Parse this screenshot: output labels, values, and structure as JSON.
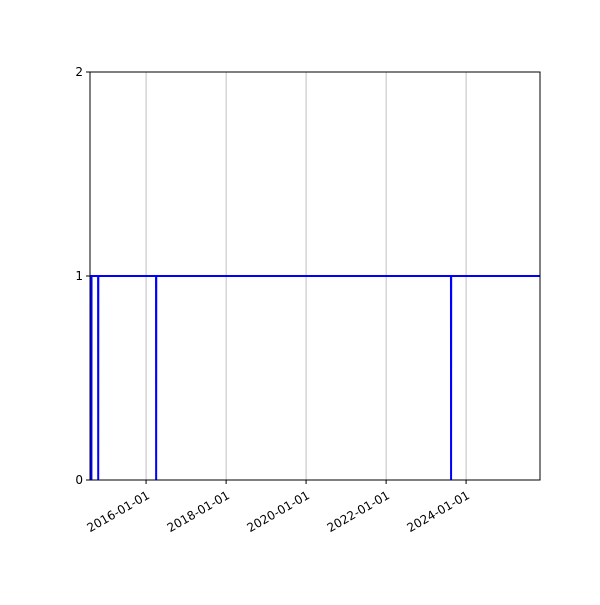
{
  "chart_data": {
    "type": "line",
    "title": "",
    "xlabel": "",
    "ylabel": "",
    "x_type": "date",
    "xlim": [
      "2014-08-07",
      "2025-11-06"
    ],
    "ylim": [
      0,
      2
    ],
    "grid": "vertical (x) only",
    "x_ticks": [
      "2016-01-01",
      "2018-01-01",
      "2020-01-01",
      "2022-01-01",
      "2024-01-01"
    ],
    "y_ticks": [
      "0",
      "1",
      "2"
    ],
    "series": [
      {
        "color": "#0000ff",
        "points": [
          [
            "2014-08-20",
            0
          ],
          [
            "2014-08-21",
            1
          ],
          [
            "2014-10-20",
            1
          ],
          [
            "2014-10-21",
            0
          ],
          [
            "2014-10-22",
            1
          ],
          [
            "2016-04-01",
            1
          ],
          [
            "2016-04-02",
            0
          ],
          [
            "2016-04-03",
            1
          ],
          [
            "2023-08-16",
            1
          ],
          [
            "2023-08-17",
            0
          ],
          [
            "2023-08-18",
            1
          ],
          [
            "2025-11-06",
            1
          ]
        ]
      }
    ]
  }
}
